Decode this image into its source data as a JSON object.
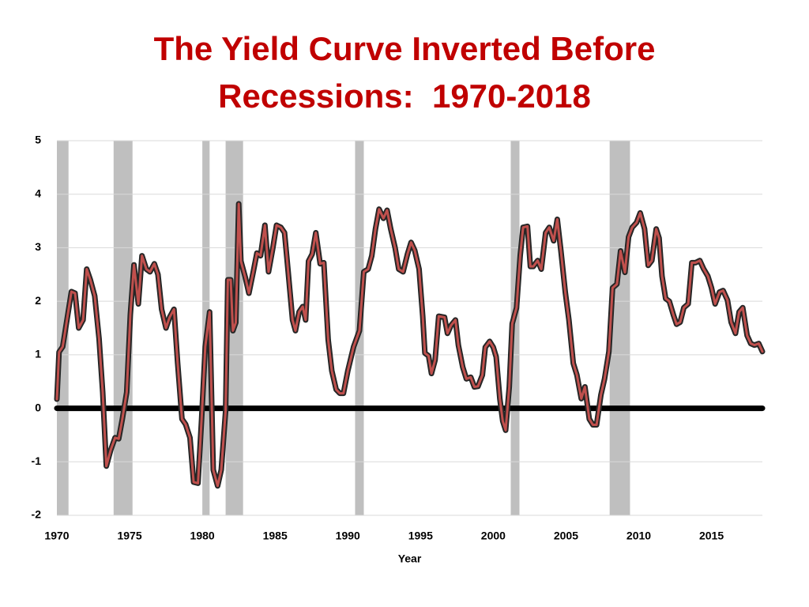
{
  "chart_data": {
    "type": "line",
    "title": "The Yield Curve Inverted Before Recessions:  1970-2018",
    "x_label": "Year",
    "xlim": [
      1970,
      2018.5
    ],
    "xticks": [
      1970,
      1975,
      1980,
      1985,
      1990,
      1995,
      2000,
      2005,
      2010,
      2015
    ],
    "ylim": [
      -2,
      5
    ],
    "yticks": [
      -2,
      -1,
      0,
      1,
      2,
      3,
      4,
      5
    ],
    "grid": true,
    "recessions": [
      [
        1970.0,
        1970.8
      ],
      [
        1973.9,
        1975.2
      ],
      [
        1980.0,
        1980.5
      ],
      [
        1981.6,
        1982.8
      ],
      [
        1990.5,
        1991.1
      ],
      [
        2001.2,
        2001.8
      ],
      [
        2008.0,
        2009.4
      ]
    ],
    "recession_color": "#bfbfbf",
    "series": [
      {
        "color": "#c0504d",
        "outline": "#262626",
        "x": [
          1970.0,
          1970.15,
          1970.4,
          1971.0,
          1971.25,
          1971.5,
          1971.8,
          1972.05,
          1972.3,
          1972.6,
          1972.9,
          1973.15,
          1973.4,
          1973.7,
          1974.0,
          1974.25,
          1974.5,
          1974.8,
          1975.05,
          1975.3,
          1975.6,
          1975.85,
          1976.15,
          1976.4,
          1976.7,
          1976.95,
          1977.2,
          1977.5,
          1977.75,
          1978.05,
          1978.3,
          1978.6,
          1978.85,
          1979.15,
          1979.4,
          1979.7,
          1979.95,
          1980.2,
          1980.5,
          1980.75,
          1981.05,
          1981.3,
          1981.6,
          1981.75,
          1981.95,
          1982.1,
          1982.3,
          1982.5,
          1982.65,
          1982.95,
          1983.2,
          1983.5,
          1983.75,
          1984.0,
          1984.3,
          1984.55,
          1984.85,
          1985.1,
          1985.4,
          1985.65,
          1985.9,
          1986.2,
          1986.4,
          1986.65,
          1986.9,
          1987.1,
          1987.3,
          1987.55,
          1987.8,
          1988.1,
          1988.35,
          1988.65,
          1988.9,
          1989.2,
          1989.45,
          1989.7,
          1990.0,
          1990.4,
          1990.8,
          1991.1,
          1991.4,
          1991.65,
          1991.9,
          1992.15,
          1992.45,
          1992.7,
          1992.95,
          1993.25,
          1993.5,
          1993.8,
          1994.1,
          1994.35,
          1994.6,
          1994.9,
          1995.15,
          1995.3,
          1995.55,
          1995.75,
          1996.0,
          1996.25,
          1996.65,
          1996.85,
          1997.1,
          1997.4,
          1997.6,
          1997.9,
          1998.15,
          1998.45,
          1998.7,
          1998.95,
          1999.25,
          1999.45,
          1999.75,
          2000.0,
          2000.2,
          2000.45,
          2000.65,
          2000.85,
          2001.1,
          2001.3,
          2001.6,
          2001.85,
          2002.05,
          2002.35,
          2002.55,
          2002.75,
          2003.05,
          2003.3,
          2003.6,
          2003.85,
          2004.15,
          2004.4,
          2004.65,
          2004.95,
          2005.2,
          2005.5,
          2005.75,
          2006.05,
          2006.3,
          2006.6,
          2006.85,
          2007.1,
          2007.4,
          2007.65,
          2007.95,
          2008.2,
          2008.5,
          2008.75,
          2009.05,
          2009.3,
          2009.55,
          2009.85,
          2010.1,
          2010.4,
          2010.65,
          2010.9,
          2011.2,
          2011.4,
          2011.6,
          2011.85,
          2012.1,
          2012.4,
          2012.6,
          2012.85,
          2013.1,
          2013.4,
          2013.65,
          2013.9,
          2014.2,
          2014.45,
          2014.75,
          2015.0,
          2015.25,
          2015.55,
          2015.8,
          2016.1,
          2016.35,
          2016.65,
          2016.9,
          2017.15,
          2017.45,
          2017.7,
          2017.95,
          2018.25,
          2018.5
        ],
        "values": [
          0.17,
          1.05,
          1.15,
          2.18,
          2.15,
          1.5,
          1.65,
          2.6,
          2.4,
          2.1,
          1.3,
          0.3,
          -1.08,
          -0.78,
          -0.55,
          -0.57,
          -0.2,
          0.3,
          1.75,
          2.68,
          1.95,
          2.85,
          2.6,
          2.55,
          2.7,
          2.5,
          1.85,
          1.5,
          1.7,
          1.85,
          0.85,
          -0.2,
          -0.3,
          -0.55,
          -1.38,
          -1.4,
          -0.2,
          1.15,
          1.8,
          -1.15,
          -1.45,
          -1.15,
          -0.05,
          2.4,
          2.4,
          1.45,
          1.6,
          3.82,
          2.75,
          2.45,
          2.15,
          2.55,
          2.9,
          2.85,
          3.42,
          2.55,
          3.0,
          3.42,
          3.38,
          3.28,
          2.55,
          1.65,
          1.45,
          1.8,
          1.9,
          1.65,
          2.75,
          2.88,
          3.28,
          2.7,
          2.72,
          1.28,
          0.7,
          0.35,
          0.28,
          0.28,
          0.7,
          1.15,
          1.45,
          2.55,
          2.6,
          2.85,
          3.35,
          3.72,
          3.55,
          3.7,
          3.35,
          3.0,
          2.6,
          2.55,
          2.88,
          3.1,
          2.95,
          2.6,
          1.72,
          1.03,
          0.98,
          0.65,
          0.9,
          1.72,
          1.7,
          1.4,
          1.55,
          1.65,
          1.18,
          0.77,
          0.55,
          0.58,
          0.4,
          0.41,
          0.62,
          1.14,
          1.25,
          1.14,
          0.96,
          0.18,
          -0.24,
          -0.41,
          0.4,
          1.58,
          1.88,
          2.85,
          3.38,
          3.4,
          2.65,
          2.65,
          2.76,
          2.6,
          3.28,
          3.38,
          3.13,
          3.53,
          2.94,
          2.17,
          1.65,
          0.84,
          0.62,
          0.18,
          0.4,
          -0.2,
          -0.31,
          -0.31,
          0.25,
          0.55,
          1.06,
          2.25,
          2.32,
          2.94,
          2.54,
          3.2,
          3.38,
          3.47,
          3.65,
          3.35,
          2.67,
          2.76,
          3.35,
          3.18,
          2.47,
          2.05,
          2.0,
          1.73,
          1.57,
          1.61,
          1.88,
          1.95,
          2.72,
          2.72,
          2.76,
          2.61,
          2.47,
          2.25,
          1.95,
          2.17,
          2.2,
          2.02,
          1.61,
          1.4,
          1.8,
          1.88,
          1.36,
          1.21,
          1.18,
          1.21,
          1.06
        ]
      }
    ]
  }
}
